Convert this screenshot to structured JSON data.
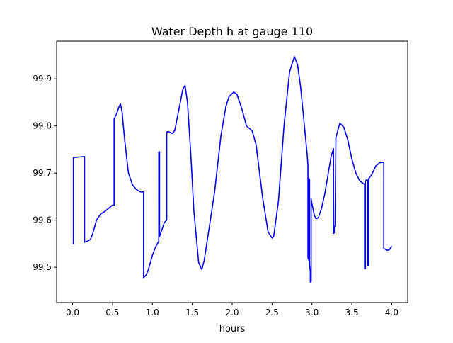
{
  "chart_data": {
    "type": "line",
    "title": "Water Depth h at gauge 110",
    "xlabel": "hours",
    "ylabel": "",
    "xlim": [
      -0.2,
      4.2
    ],
    "ylim": [
      99.425,
      99.98
    ],
    "xticks": [
      0.0,
      0.5,
      1.0,
      1.5,
      2.0,
      2.5,
      3.0,
      3.5,
      4.0
    ],
    "xtick_labels": [
      "0.0",
      "0.5",
      "1.0",
      "1.5",
      "2.0",
      "2.5",
      "3.0",
      "3.5",
      "4.0"
    ],
    "yticks": [
      99.5,
      99.6,
      99.7,
      99.8,
      99.9
    ],
    "ytick_labels": [
      "99.5",
      "99.6",
      "99.7",
      "99.8",
      "99.9"
    ],
    "grid": false,
    "series": [
      {
        "color": "#0000ff",
        "x": [
          0.0,
          0.01,
          0.01,
          0.15,
          0.15,
          0.22,
          0.25,
          0.3,
          0.35,
          0.4,
          0.45,
          0.5,
          0.52,
          0.52,
          0.55,
          0.58,
          0.6,
          0.62,
          0.65,
          0.7,
          0.75,
          0.8,
          0.85,
          0.89,
          0.89,
          0.92,
          0.95,
          1.0,
          1.04,
          1.08,
          1.08,
          1.09,
          1.09,
          1.12,
          1.15,
          1.18,
          1.18,
          1.2,
          1.25,
          1.28,
          1.35,
          1.38,
          1.41,
          1.44,
          1.48,
          1.52,
          1.58,
          1.62,
          1.65,
          1.7,
          1.78,
          1.86,
          1.92,
          1.96,
          2.02,
          2.06,
          2.12,
          2.18,
          2.25,
          2.3,
          2.38,
          2.45,
          2.5,
          2.52,
          2.58,
          2.65,
          2.72,
          2.78,
          2.82,
          2.86,
          2.9,
          2.94,
          2.95,
          2.95,
          2.96,
          2.96,
          2.97,
          2.97,
          2.98,
          2.98,
          2.99,
          2.99,
          3.0,
          3.03,
          3.05,
          3.08,
          3.12,
          3.16,
          3.2,
          3.24,
          3.27,
          3.27,
          3.28,
          3.28,
          3.29,
          3.3,
          3.32,
          3.35,
          3.4,
          3.45,
          3.5,
          3.55,
          3.6,
          3.65,
          3.66,
          3.66,
          3.67,
          3.67,
          3.68,
          3.7,
          3.7,
          3.71,
          3.71,
          3.72,
          3.75,
          3.8,
          3.85,
          3.9,
          3.9,
          3.94,
          3.97,
          4.0
        ],
        "y": [
          99.55,
          99.55,
          99.733,
          99.735,
          99.553,
          99.558,
          99.57,
          99.6,
          99.613,
          99.618,
          99.625,
          99.632,
          99.632,
          99.815,
          99.825,
          99.84,
          99.847,
          99.83,
          99.775,
          99.7,
          99.675,
          99.665,
          99.66,
          99.66,
          99.478,
          99.483,
          99.495,
          99.525,
          99.543,
          99.555,
          99.745,
          99.745,
          99.565,
          99.58,
          99.595,
          99.6,
          99.787,
          99.788,
          99.784,
          99.79,
          99.85,
          99.877,
          99.886,
          99.85,
          99.745,
          99.62,
          99.51,
          99.495,
          99.515,
          99.57,
          99.66,
          99.78,
          99.84,
          99.862,
          99.872,
          99.867,
          99.837,
          99.8,
          99.79,
          99.76,
          99.65,
          99.575,
          99.562,
          99.565,
          99.64,
          99.8,
          99.915,
          99.947,
          99.93,
          99.88,
          99.81,
          99.74,
          99.715,
          99.52,
          99.515,
          99.69,
          99.685,
          99.505,
          99.49,
          99.468,
          99.47,
          99.645,
          99.635,
          99.61,
          99.603,
          99.605,
          99.625,
          99.655,
          99.695,
          99.735,
          99.752,
          99.572,
          99.573,
          99.583,
          99.59,
          99.775,
          99.788,
          99.806,
          99.797,
          99.77,
          99.73,
          99.7,
          99.683,
          99.677,
          99.677,
          99.497,
          99.497,
          99.682,
          99.685,
          99.685,
          99.503,
          99.503,
          99.688,
          99.69,
          99.697,
          99.715,
          99.722,
          99.723,
          99.54,
          99.536,
          99.537,
          99.545
        ]
      }
    ]
  }
}
